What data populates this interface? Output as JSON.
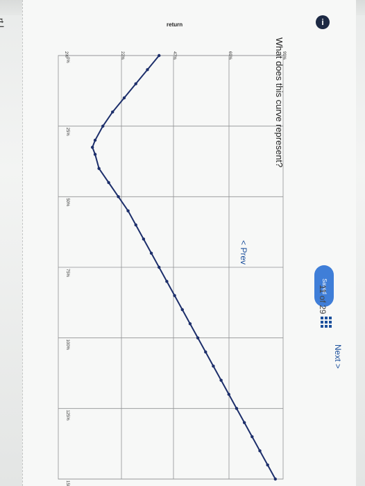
{
  "header": {
    "part_label": "rt I",
    "info_icon": "info-icon",
    "info_glyph": "i"
  },
  "status": {
    "saved_label": "Saved"
  },
  "question": {
    "text": "What does this curve represent?"
  },
  "navigation": {
    "prev_label": "< Prev",
    "page_indicator": "11 of 29",
    "grid_icon": "grid-icon",
    "next_label": "Next >"
  },
  "chart_data": {
    "type": "line",
    "ylabel": "return",
    "xlabel": "",
    "orientation": "rotated 90 degrees clockwise",
    "y_tick_labels": [
      "2%",
      "22%",
      "47%",
      "69%",
      "99%"
    ],
    "x_tick_labels": [
      "0%",
      "25%",
      "50%",
      "75%",
      "100%",
      "125%",
      "150%"
    ],
    "series": [
      {
        "color": "#1d2f6b",
        "x": [
          0,
          5,
          10,
          15,
          20,
          25,
          30,
          32.5,
          35,
          40,
          45,
          50,
          55,
          60,
          65,
          70,
          75,
          80,
          85,
          90,
          95,
          100,
          105,
          110,
          115,
          120,
          125,
          130,
          135,
          140,
          145,
          150
        ],
        "y": [
          2,
          5,
          8,
          11,
          14,
          16.5,
          18.5,
          19.2,
          18.5,
          17.5,
          15,
          12.5,
          10,
          8,
          6,
          4,
          2,
          0,
          -2,
          -4,
          -6,
          -8,
          -10,
          -12,
          -14,
          -16,
          -18,
          -20,
          -22,
          -24,
          -26,
          -28
        ]
      }
    ]
  }
}
